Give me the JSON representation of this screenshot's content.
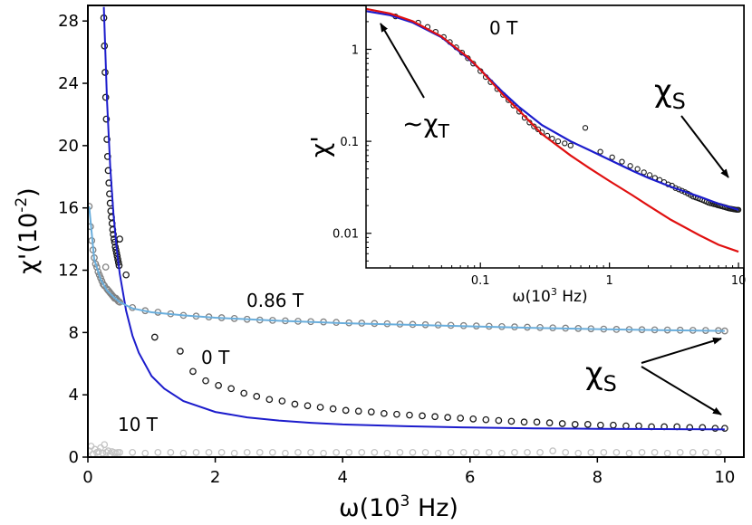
{
  "chart_data": [
    {
      "type": "scatter",
      "title": "",
      "xlabel": "ω(10³ Hz)",
      "ylabel": "χ'(10⁻²)",
      "xlim": [
        0,
        10.3
      ],
      "ylim": [
        0,
        29
      ],
      "xticks": [
        0,
        2,
        4,
        6,
        8,
        10
      ],
      "yticks": [
        0,
        4,
        8,
        12,
        16,
        20,
        24,
        28
      ],
      "grid": false,
      "annotations": [
        "0.86 T",
        "0 T",
        "10 T",
        "χS"
      ],
      "series": [
        {
          "name": "0 T",
          "kind": "data",
          "color": "#1a1a1a",
          "x": [
            0.25,
            0.26,
            0.27,
            0.28,
            0.29,
            0.3,
            0.31,
            0.32,
            0.33,
            0.34,
            0.35,
            0.36,
            0.37,
            0.38,
            0.39,
            0.4,
            0.41,
            0.42,
            0.43,
            0.44,
            0.45,
            0.46,
            0.47,
            0.48,
            0.49,
            0.5,
            0.6,
            1.05,
            1.45,
            1.65,
            1.85,
            2.05,
            2.25,
            2.45,
            2.65,
            2.85,
            3.05,
            3.25,
            3.45,
            3.65,
            3.85,
            4.05,
            4.25,
            4.45,
            4.65,
            4.85,
            5.05,
            5.25,
            5.45,
            5.65,
            5.85,
            6.05,
            6.25,
            6.45,
            6.65,
            6.85,
            7.05,
            7.25,
            7.45,
            7.65,
            7.85,
            8.05,
            8.25,
            8.45,
            8.65,
            8.85,
            9.05,
            9.25,
            9.45,
            9.65,
            9.85,
            10.0
          ],
          "y": [
            28.2,
            26.4,
            24.7,
            23.1,
            21.7,
            20.4,
            19.3,
            18.4,
            17.6,
            16.9,
            16.3,
            15.8,
            15.4,
            15.0,
            14.6,
            14.3,
            14.0,
            13.8,
            13.5,
            13.3,
            13.1,
            12.9,
            12.7,
            12.5,
            12.3,
            14.0,
            11.7,
            7.7,
            6.8,
            5.5,
            4.9,
            4.6,
            4.4,
            4.1,
            3.9,
            3.7,
            3.6,
            3.4,
            3.3,
            3.2,
            3.1,
            3.0,
            2.95,
            2.9,
            2.8,
            2.75,
            2.7,
            2.65,
            2.6,
            2.55,
            2.5,
            2.45,
            2.4,
            2.35,
            2.3,
            2.25,
            2.25,
            2.2,
            2.15,
            2.1,
            2.1,
            2.05,
            2.05,
            2.0,
            2.0,
            1.95,
            1.95,
            1.95,
            1.9,
            1.9,
            1.85,
            1.85
          ]
        },
        {
          "name": "0 T fit",
          "kind": "fit",
          "color": "#1c1ccc",
          "x": [
            0.25,
            0.3,
            0.35,
            0.4,
            0.45,
            0.5,
            0.6,
            0.7,
            0.8,
            1.0,
            1.2,
            1.5,
            2.0,
            2.5,
            3.0,
            3.5,
            4.0,
            5.0,
            6.0,
            7.0,
            8.0,
            9.0,
            10.0
          ],
          "y": [
            28.9,
            22.9,
            18.7,
            15.7,
            13.5,
            11.8,
            9.4,
            7.8,
            6.7,
            5.2,
            4.4,
            3.6,
            2.9,
            2.55,
            2.35,
            2.2,
            2.1,
            1.98,
            1.9,
            1.85,
            1.82,
            1.8,
            1.78
          ]
        },
        {
          "name": "0.86 T",
          "kind": "data",
          "color": "#808080",
          "x": [
            0.02,
            0.04,
            0.06,
            0.08,
            0.1,
            0.12,
            0.14,
            0.16,
            0.18,
            0.2,
            0.22,
            0.24,
            0.26,
            0.28,
            0.3,
            0.32,
            0.34,
            0.36,
            0.38,
            0.4,
            0.42,
            0.44,
            0.46,
            0.48,
            0.5,
            0.7,
            0.9,
            1.1,
            1.3,
            1.5,
            1.7,
            1.9,
            2.1,
            2.3,
            2.5,
            2.7,
            2.9,
            3.1,
            3.3,
            3.5,
            3.7,
            3.9,
            4.1,
            4.3,
            4.5,
            4.7,
            4.9,
            5.1,
            5.3,
            5.5,
            5.7,
            5.9,
            6.1,
            6.3,
            6.5,
            6.7,
            6.9,
            7.1,
            7.3,
            7.5,
            7.7,
            7.9,
            8.1,
            8.3,
            8.5,
            8.7,
            8.9,
            9.1,
            9.3,
            9.5,
            9.7,
            9.9,
            10.0
          ],
          "y": [
            16.1,
            14.8,
            13.9,
            13.3,
            12.8,
            12.4,
            12.2,
            11.9,
            11.7,
            11.5,
            11.3,
            11.1,
            11.0,
            12.2,
            10.8,
            10.7,
            10.6,
            10.5,
            10.4,
            10.3,
            10.2,
            10.2,
            10.1,
            10.0,
            9.95,
            9.6,
            9.4,
            9.3,
            9.2,
            9.1,
            9.05,
            9.0,
            8.95,
            8.9,
            8.85,
            8.8,
            8.78,
            8.75,
            8.72,
            8.7,
            8.68,
            8.65,
            8.62,
            8.6,
            8.58,
            8.56,
            8.54,
            8.52,
            8.5,
            8.48,
            8.46,
            8.44,
            8.42,
            8.4,
            8.38,
            8.36,
            8.34,
            8.32,
            8.3,
            8.28,
            8.26,
            8.24,
            8.22,
            8.2,
            8.19,
            8.18,
            8.17,
            8.16,
            8.15,
            8.14,
            8.13,
            8.12,
            8.1
          ]
        },
        {
          "name": "0.86 T fit",
          "kind": "fit",
          "color": "#6aaedc",
          "x": [
            0.02,
            0.1,
            0.2,
            0.3,
            0.4,
            0.5,
            0.7,
            1.0,
            1.5,
            2.0,
            3.0,
            4.0,
            5.0,
            6.0,
            7.0,
            8.0,
            9.0,
            10.0
          ],
          "y": [
            16.1,
            12.7,
            11.4,
            10.7,
            10.3,
            9.95,
            9.55,
            9.3,
            9.1,
            8.95,
            8.75,
            8.6,
            8.5,
            8.4,
            8.3,
            8.22,
            8.15,
            8.1
          ]
        },
        {
          "name": "10 T",
          "kind": "data",
          "color": "#c4c4c4",
          "x": [
            0.02,
            0.05,
            0.08,
            0.11,
            0.14,
            0.17,
            0.2,
            0.23,
            0.26,
            0.29,
            0.32,
            0.35,
            0.38,
            0.41,
            0.44,
            0.47,
            0.5,
            0.7,
            0.9,
            1.1,
            1.3,
            1.5,
            1.7,
            1.9,
            2.1,
            2.3,
            2.5,
            2.7,
            2.9,
            3.1,
            3.3,
            3.5,
            3.7,
            3.9,
            4.1,
            4.3,
            4.5,
            4.7,
            4.9,
            5.1,
            5.3,
            5.5,
            5.7,
            5.9,
            6.1,
            6.3,
            6.5,
            6.7,
            6.9,
            7.1,
            7.3,
            7.5,
            7.7,
            7.9,
            8.1,
            8.3,
            8.5,
            8.7,
            8.9,
            9.1,
            9.3,
            9.5,
            9.7,
            9.9
          ],
          "y": [
            0.4,
            0.7,
            0.2,
            0.5,
            0.3,
            0.35,
            0.6,
            0.25,
            0.8,
            0.3,
            0.4,
            0.2,
            0.35,
            0.3,
            0.25,
            0.3,
            0.3,
            0.3,
            0.25,
            0.3,
            0.3,
            0.25,
            0.3,
            0.3,
            0.3,
            0.25,
            0.3,
            0.3,
            0.3,
            0.25,
            0.3,
            0.3,
            0.25,
            0.3,
            0.3,
            0.3,
            0.3,
            0.25,
            0.3,
            0.3,
            0.3,
            0.25,
            0.3,
            0.3,
            0.3,
            0.3,
            0.25,
            0.3,
            0.3,
            0.3,
            0.4,
            0.3,
            0.25,
            0.3,
            0.3,
            0.3,
            0.25,
            0.3,
            0.3,
            0.25,
            0.3,
            0.3,
            0.3,
            0.3
          ]
        }
      ]
    },
    {
      "type": "line",
      "title": "0 T",
      "xlabel": "ω(10³ Hz)",
      "ylabel": "χ'",
      "xscale": "log",
      "yscale": "log",
      "xlim": [
        0.013,
        11
      ],
      "ylim": [
        0.0042,
        3.0
      ],
      "xticks": [
        0.1,
        1,
        10
      ],
      "xtick_labels": [
        "0.1",
        "1",
        "10"
      ],
      "yticks": [
        0.01,
        0.1,
        1
      ],
      "ytick_labels": [
        "0.01",
        "0.1",
        "1"
      ],
      "grid": false,
      "annotations": [
        "~χT",
        "χS"
      ],
      "series": [
        {
          "name": "0 T",
          "kind": "data",
          "color": "#1a1a1a",
          "x": [
            0.022,
            0.033,
            0.039,
            0.045,
            0.052,
            0.058,
            0.065,
            0.072,
            0.08,
            0.088,
            0.1,
            0.11,
            0.12,
            0.135,
            0.15,
            0.165,
            0.18,
            0.2,
            0.22,
            0.24,
            0.26,
            0.28,
            0.3,
            0.33,
            0.36,
            0.4,
            0.45,
            0.5,
            0.65,
            0.85,
            1.05,
            1.25,
            1.45,
            1.65,
            1.85,
            2.05,
            2.25,
            2.45,
            2.65,
            2.85,
            3.05,
            3.25,
            3.45,
            3.65,
            3.85,
            4.05,
            4.25,
            4.45,
            4.65,
            4.85,
            5.05,
            5.25,
            5.45,
            5.65,
            5.85,
            6.05,
            6.25,
            6.45,
            6.65,
            6.85,
            7.05,
            7.25,
            7.45,
            7.65,
            7.85,
            8.05,
            8.25,
            8.45,
            8.65,
            8.85,
            9.05,
            9.25,
            9.45,
            9.65,
            9.85,
            10.0
          ],
          "y": [
            2.28,
            1.95,
            1.75,
            1.55,
            1.36,
            1.2,
            1.05,
            0.92,
            0.8,
            0.7,
            0.58,
            0.5,
            0.44,
            0.37,
            0.32,
            0.28,
            0.245,
            0.21,
            0.18,
            0.16,
            0.145,
            0.135,
            0.125,
            0.115,
            0.107,
            0.1,
            0.095,
            0.09,
            0.14,
            0.077,
            0.067,
            0.06,
            0.054,
            0.05,
            0.046,
            0.043,
            0.04,
            0.038,
            0.036,
            0.034,
            0.033,
            0.031,
            0.03,
            0.029,
            0.028,
            0.027,
            0.026,
            0.025,
            0.0245,
            0.024,
            0.0235,
            0.023,
            0.0225,
            0.022,
            0.0215,
            0.0212,
            0.021,
            0.0207,
            0.0205,
            0.0202,
            0.02,
            0.0198,
            0.0196,
            0.0194,
            0.0192,
            0.019,
            0.0188,
            0.0186,
            0.0185,
            0.0184,
            0.0183,
            0.0182,
            0.0181,
            0.018,
            0.018,
            0.018
          ]
        },
        {
          "name": "blue fit",
          "kind": "fit",
          "color": "#1c1ccc",
          "x": [
            0.013,
            0.02,
            0.03,
            0.05,
            0.08,
            0.1,
            0.15,
            0.2,
            0.3,
            0.5,
            0.7,
            1.0,
            1.5,
            2,
            3,
            5,
            7,
            10
          ],
          "y": [
            2.6,
            2.35,
            1.95,
            1.35,
            0.8,
            0.6,
            0.34,
            0.235,
            0.15,
            0.1,
            0.08,
            0.063,
            0.048,
            0.04,
            0.032,
            0.025,
            0.021,
            0.018
          ]
        },
        {
          "name": "red fit",
          "kind": "fit",
          "color": "#e01010",
          "x": [
            0.013,
            0.02,
            0.03,
            0.05,
            0.08,
            0.1,
            0.15,
            0.2,
            0.3,
            0.5,
            0.7,
            1.0,
            1.5,
            2,
            3,
            5,
            7,
            10
          ],
          "y": [
            2.75,
            2.45,
            2.02,
            1.38,
            0.82,
            0.6,
            0.32,
            0.215,
            0.12,
            0.07,
            0.051,
            0.037,
            0.026,
            0.02,
            0.014,
            0.0095,
            0.0075,
            0.0063
          ]
        }
      ]
    }
  ]
}
